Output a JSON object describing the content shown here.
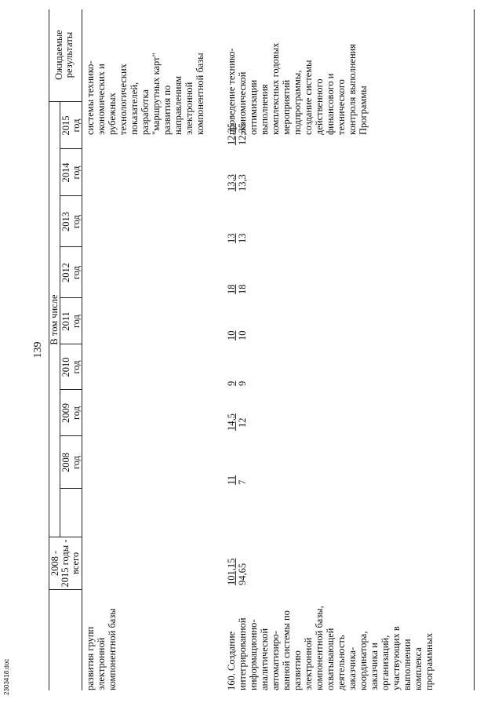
{
  "page_number": "139",
  "header": {
    "total_years": "2008 -\n2015 годы -\nвсего",
    "including": "В том числе",
    "years": [
      "2008\nгод",
      "2009\nгод",
      "2010\nгод",
      "2011\nгод",
      "2012\nгод",
      "2013\nгод",
      "2014\nгод",
      "2015\nгод"
    ],
    "expected_results": "Ожидаемые\nрезультаты"
  },
  "row_prev": {
    "name_lines": [
      "развития групп",
      "электронной",
      "компонентной базы"
    ],
    "result_lines": [
      "системы технико-",
      "экономических и",
      "рубежных",
      "технологических",
      "показателей,",
      "разработка",
      "\"маршрутных карт\"",
      "развития по",
      "направлениям",
      "электронной",
      "компонентной базы"
    ]
  },
  "row_160": {
    "name_lines": [
      "160. Создание",
      "интегрированной",
      "информационно-",
      "аналитической",
      "автоматизиро-",
      "ванной системы по",
      "развитию",
      "электронной",
      "компонентной базы,",
      "охватывающей",
      "деятельность",
      "заказчика-",
      "координатора,",
      "заказчика и",
      "организаций,",
      "участвующих в",
      "выполнении",
      "комплекса",
      "программных"
    ],
    "total": {
      "top": "101,15",
      "bottom": "94,65"
    },
    "values": [
      {
        "top": "11",
        "bottom": "7"
      },
      {
        "top": "14,5",
        "bottom": "12"
      },
      {
        "top": "9",
        "bottom": "9"
      },
      {
        "top": "10",
        "bottom": "10"
      },
      {
        "top": "18",
        "bottom": "18"
      },
      {
        "top": "13",
        "bottom": "13"
      },
      {
        "top": "13,3",
        "bottom": "13,3"
      },
      {
        "top": "12,35",
        "bottom": "12,35"
      }
    ],
    "result_lines": [
      "проведение технико-",
      "экономической",
      "оптимизации",
      "выполнения",
      "комплексных годовых",
      "мероприятий",
      "подпрограммы,",
      "создание системы",
      "действенного",
      "финансового и",
      "технического",
      "контроля выполнения",
      "Программы"
    ]
  },
  "footer": "2303418.doc"
}
